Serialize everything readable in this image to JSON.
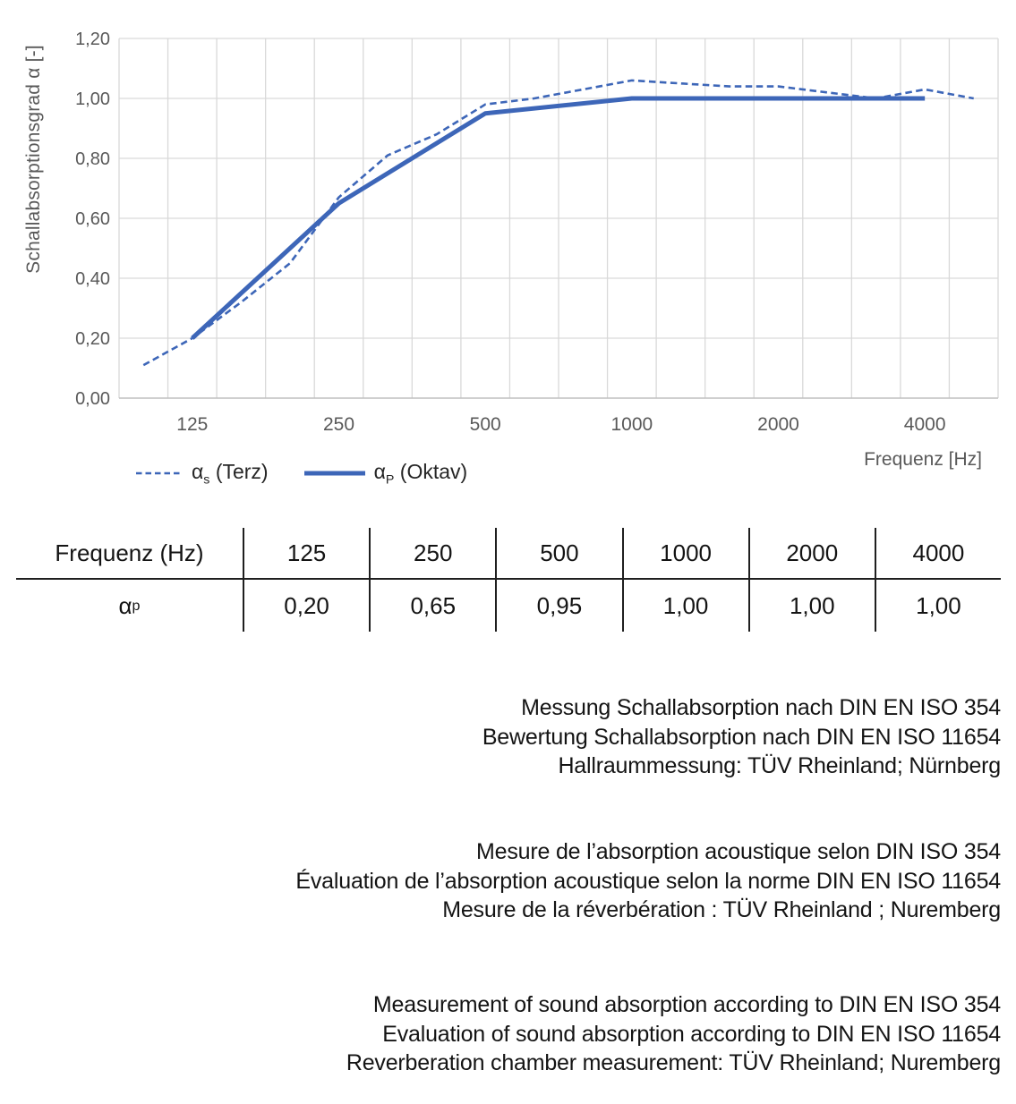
{
  "chart_data": {
    "type": "line",
    "title": "",
    "xlabel": "Frequenz [Hz]",
    "ylabel": "Schallabsorptionsgrad α [-]",
    "x_scale": "third-octave bands, logarithmic category axis",
    "x": [
      100,
      125,
      160,
      200,
      250,
      315,
      400,
      500,
      630,
      800,
      1000,
      1250,
      1600,
      2000,
      2500,
      3150,
      4000,
      5000
    ],
    "x_tick_labels": [
      "125",
      "250",
      "500",
      "1000",
      "2000",
      "4000"
    ],
    "y_ticks": [
      "1,20",
      "1,00",
      "0,80",
      "0,60",
      "0,40",
      "0,20",
      "0,00"
    ],
    "ylim": [
      0,
      1.2
    ],
    "grid": true,
    "legend_position": "bottom-left",
    "series": [
      {
        "name": "αs (Terz)",
        "legend": {
          "alpha": "α",
          "sub": "s",
          "rest": "(Terz)"
        },
        "style": "dashed",
        "x": [
          100,
          125,
          160,
          200,
          250,
          315,
          400,
          500,
          630,
          800,
          1000,
          1250,
          1600,
          2000,
          2500,
          3150,
          4000,
          5000
        ],
        "values": [
          0.11,
          0.2,
          0.32,
          0.45,
          0.67,
          0.81,
          0.88,
          0.98,
          1.0,
          1.03,
          1.06,
          1.05,
          1.04,
          1.04,
          1.02,
          1.0,
          1.03,
          1.0
        ]
      },
      {
        "name": "αP (Oktav)",
        "legend": {
          "alpha": "α",
          "sub": "P",
          "rest": "(Oktav)"
        },
        "style": "solid",
        "x": [
          125,
          250,
          500,
          1000,
          2000,
          4000
        ],
        "values": [
          0.2,
          0.65,
          0.95,
          1.0,
          1.0,
          1.0
        ]
      }
    ],
    "colors": {
      "line": "#3d66b8",
      "grid": "#d9d9d9",
      "axis": "#bfbfbf",
      "tick_text": "#595959"
    }
  },
  "table": {
    "header": [
      "Frequenz (Hz)",
      "125",
      "250",
      "500",
      "1000",
      "2000",
      "4000"
    ],
    "row_label": {
      "alpha": "α",
      "sub": "p"
    },
    "values": [
      "0,20",
      "0,65",
      "0,95",
      "1,00",
      "1,00",
      "1,00"
    ]
  },
  "notes": {
    "german": [
      "Messung Schallabsorption nach DIN EN ISO 354",
      "Bewertung Schallabsorption nach DIN EN ISO 11654",
      "Hallraummessung: TÜV Rheinland; Nürnberg"
    ],
    "french": [
      "Mesure de l’absorption acoustique selon DIN ISO 354",
      "Évaluation de l’absorption acoustique selon la norme DIN EN ISO 11654",
      "Mesure de la réverbération : TÜV Rheinland ; Nuremberg"
    ],
    "english": [
      "Measurement of sound absorption according to DIN EN ISO 354",
      "Evaluation of sound absorption according to DIN EN ISO 11654",
      "Reverberation chamber measurement: TÜV Rheinland; Nuremberg"
    ]
  }
}
